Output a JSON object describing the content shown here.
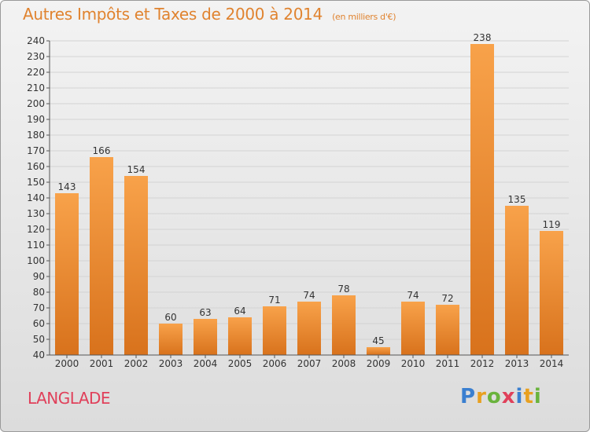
{
  "chart_data": {
    "type": "bar",
    "title": "Autres Impôts et Taxes de 2000 à 2014",
    "subtitle": "(en milliers d'€)",
    "categories": [
      "2000",
      "2001",
      "2002",
      "2003",
      "2004",
      "2005",
      "2006",
      "2007",
      "2008",
      "2009",
      "2010",
      "2011",
      "2012",
      "2013",
      "2014"
    ],
    "values": [
      143,
      166,
      154,
      60,
      63,
      64,
      71,
      74,
      78,
      45,
      74,
      72,
      238,
      135,
      119
    ],
    "ylim": [
      40,
      240
    ],
    "ytick_step": 10,
    "grid": "horizontal",
    "bar_color": "#f0922e"
  },
  "footer": {
    "place": "LANGLADE",
    "logo": "Proxiti"
  }
}
